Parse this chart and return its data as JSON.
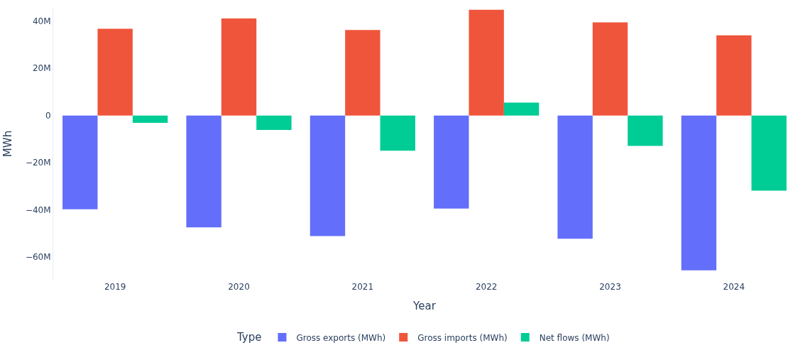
{
  "chart_data": {
    "type": "bar",
    "xlabel": "Year",
    "ylabel": "MWh",
    "legend_title": "Type",
    "legend": "bottom",
    "categories": [
      "2019",
      "2020",
      "2021",
      "2022",
      "2023",
      "2024"
    ],
    "series": [
      {
        "name": "Gross exports (MWh)",
        "color": "#636efa",
        "values": [
          -39800000,
          -47500000,
          -51200000,
          -39500000,
          -52300000,
          -65700000
        ]
      },
      {
        "name": "Gross imports (MWh)",
        "color": "#ef553b",
        "values": [
          36800000,
          41200000,
          36300000,
          44900000,
          39500000,
          34000000
        ]
      },
      {
        "name": "Net flows (MWh)",
        "color": "#00cc96",
        "values": [
          -3100000,
          -6100000,
          -14900000,
          5500000,
          -12900000,
          -31900000
        ]
      }
    ],
    "ylim": [
      -70000000,
      46000000
    ],
    "yticks": [
      {
        "value": -60000000,
        "label": "−60M"
      },
      {
        "value": -40000000,
        "label": "−40M"
      },
      {
        "value": -20000000,
        "label": "−20M"
      },
      0,
      {
        "value": 20000000,
        "label": "20M"
      },
      {
        "value": 40000000,
        "label": "40M"
      }
    ]
  }
}
